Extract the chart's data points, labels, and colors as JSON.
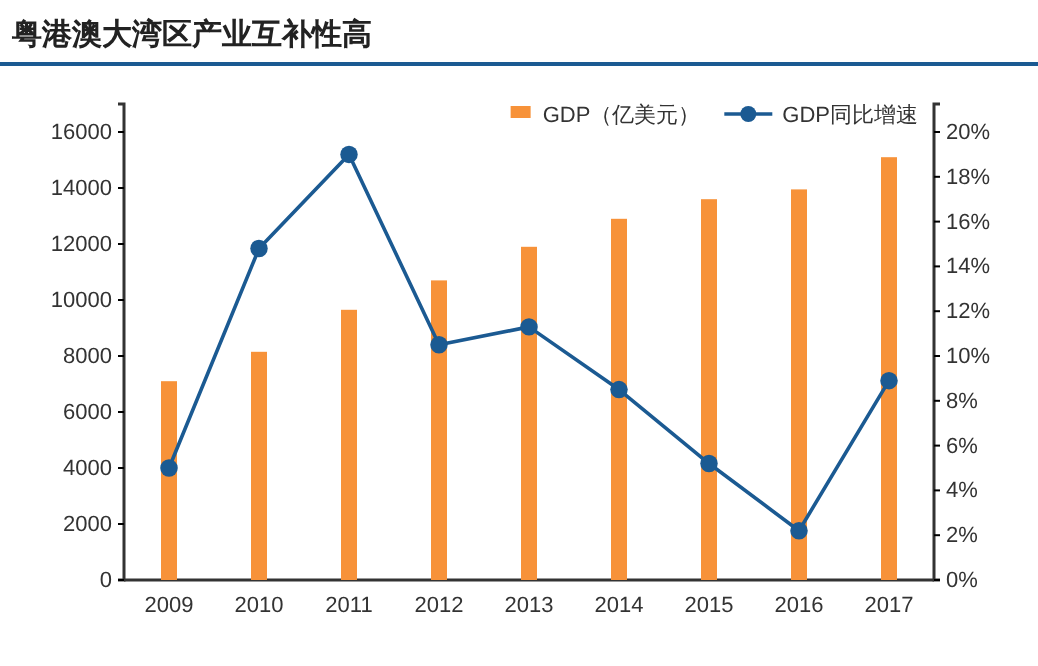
{
  "chart_data": {
    "type": "bar",
    "title": "粤港澳大湾区产业互补性高",
    "categories": [
      "2009",
      "2010",
      "2011",
      "2012",
      "2013",
      "2014",
      "2015",
      "2016",
      "2017"
    ],
    "series": [
      {
        "name": "GDP（亿美元）",
        "color": "#f79239",
        "values": [
          7100,
          8150,
          9650,
          10700,
          11900,
          12900,
          13600,
          13950,
          15100
        ]
      },
      {
        "name": "GDP同比增速",
        "type": "line",
        "axis": "y2",
        "color": "#1b5a92",
        "marker": "circle",
        "values": [
          5.0,
          14.8,
          19.0,
          10.5,
          11.3,
          8.5,
          5.2,
          2.2,
          8.9
        ]
      }
    ],
    "ylim": [
      0,
      17000
    ],
    "yticks": [
      0,
      2000,
      4000,
      6000,
      8000,
      10000,
      12000,
      14000,
      16000
    ],
    "y2lim": [
      0,
      21.25
    ],
    "y2ticks": [
      {
        "value": 0,
        "label": "0%"
      },
      {
        "value": 2,
        "label": "2%"
      },
      {
        "value": 4,
        "label": "4%"
      },
      {
        "value": 6,
        "label": "6%"
      },
      {
        "value": 8,
        "label": "8%"
      },
      {
        "value": 10,
        "label": "10%"
      },
      {
        "value": 12,
        "label": "12%"
      },
      {
        "value": 14,
        "label": "14%"
      },
      {
        "value": 16,
        "label": "16%"
      },
      {
        "value": 18,
        "label": "18%"
      },
      {
        "value": 20,
        "label": "20%"
      }
    ],
    "grid": false,
    "legend": "top right"
  }
}
